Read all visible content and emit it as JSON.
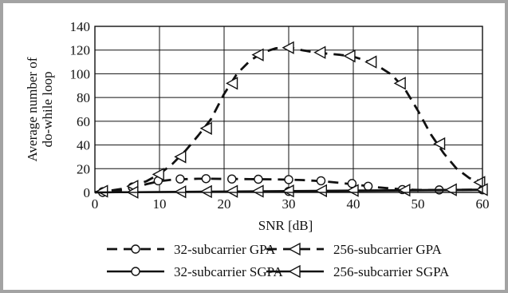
{
  "chart_data": {
    "type": "line",
    "xlabel": "SNR [dB]",
    "ylabel_line1": "Average number of",
    "ylabel_line2": "do-while loop",
    "xlim": [
      0,
      60
    ],
    "ylim": [
      0,
      140
    ],
    "xticks": [
      0,
      10,
      20,
      30,
      40,
      50,
      60
    ],
    "yticks": [
      0,
      20,
      40,
      60,
      80,
      100,
      120,
      140
    ],
    "grid": true,
    "legend_position": "bottom",
    "series": [
      {
        "name": "32-subcarrier GPA",
        "style": "dashed",
        "marker": "circle",
        "curve": [
          [
            0,
            0.2
          ],
          [
            2,
            0.6
          ],
          [
            4,
            1.8
          ],
          [
            6,
            4
          ],
          [
            8,
            7
          ],
          [
            10,
            9.5
          ],
          [
            12,
            10.7
          ],
          [
            14,
            11.2
          ],
          [
            16,
            11.5
          ],
          [
            18,
            11.5
          ],
          [
            20,
            11.4
          ],
          [
            22,
            11.3
          ],
          [
            24,
            11.2
          ],
          [
            26,
            11.1
          ],
          [
            28,
            11
          ],
          [
            30,
            10.8
          ],
          [
            32,
            10.4
          ],
          [
            34,
            9.8
          ],
          [
            36,
            9
          ],
          [
            38,
            8
          ],
          [
            40,
            6.8
          ],
          [
            42,
            5.5
          ],
          [
            44,
            4.2
          ],
          [
            46,
            3.2
          ],
          [
            48,
            2.5
          ],
          [
            50,
            2.1
          ],
          [
            52,
            2
          ],
          [
            54,
            2
          ],
          [
            56,
            2.1
          ],
          [
            58,
            2.2
          ],
          [
            60,
            2.2
          ]
        ],
        "markers": [
          [
            1.2,
            0.6
          ],
          [
            5.8,
            4.6
          ],
          [
            9.8,
            9.8
          ],
          [
            13.2,
            11.3
          ],
          [
            17.2,
            11.6
          ],
          [
            21.2,
            11.3
          ],
          [
            25.3,
            11.1
          ],
          [
            30,
            10.8
          ],
          [
            35,
            9.8
          ],
          [
            39.8,
            7.5
          ],
          [
            42.3,
            5.2
          ],
          [
            47.6,
            2.4
          ],
          [
            53.3,
            2.1
          ],
          [
            60,
            2.2
          ]
        ]
      },
      {
        "name": "32-subcarrier SGPA",
        "style": "solid",
        "marker": "circle",
        "curve": [
          [
            0,
            0
          ],
          [
            10,
            0.3
          ],
          [
            20,
            0.6
          ],
          [
            30,
            0.9
          ],
          [
            40,
            1.2
          ],
          [
            50,
            1.6
          ],
          [
            60,
            2
          ]
        ],
        "markers": [
          [
            1.2,
            0
          ],
          [
            30,
            0.9
          ]
        ]
      },
      {
        "name": "256-subcarrier GPA",
        "style": "dashed",
        "marker": "triangle-left",
        "curve": [
          [
            0,
            0.3
          ],
          [
            2,
            1.2
          ],
          [
            4,
            2.8
          ],
          [
            6,
            5.5
          ],
          [
            8,
            9.5
          ],
          [
            10,
            15.5
          ],
          [
            12,
            24
          ],
          [
            14,
            35
          ],
          [
            16,
            48
          ],
          [
            18,
            62
          ],
          [
            20,
            83
          ],
          [
            22,
            100
          ],
          [
            24,
            111
          ],
          [
            26,
            118
          ],
          [
            28,
            121.5
          ],
          [
            30,
            122.5
          ],
          [
            32,
            120
          ],
          [
            34,
            118
          ],
          [
            36,
            117
          ],
          [
            38,
            116
          ],
          [
            40,
            114.5
          ],
          [
            42,
            111
          ],
          [
            44,
            106
          ],
          [
            46,
            99
          ],
          [
            48,
            87
          ],
          [
            50,
            69
          ],
          [
            52,
            49
          ],
          [
            54,
            33
          ],
          [
            56,
            20
          ],
          [
            58,
            12
          ],
          [
            60,
            9
          ]
        ],
        "markers": [
          [
            1.2,
            1
          ],
          [
            5.9,
            5.2
          ],
          [
            9.9,
            15.2
          ],
          [
            13.3,
            30
          ],
          [
            17.3,
            54
          ],
          [
            21.3,
            92
          ],
          [
            25.3,
            116
          ],
          [
            30,
            122
          ],
          [
            34.9,
            118
          ],
          [
            39.5,
            115
          ],
          [
            42.8,
            110
          ],
          [
            47.3,
            92
          ],
          [
            53.4,
            41
          ],
          [
            59.6,
            8.5
          ]
        ]
      },
      {
        "name": "256-subcarrier SGPA",
        "style": "solid",
        "marker": "triangle-left",
        "curve": [
          [
            0,
            0
          ],
          [
            10,
            0.4
          ],
          [
            20,
            0.8
          ],
          [
            30,
            1.2
          ],
          [
            40,
            1.6
          ],
          [
            50,
            2
          ],
          [
            60,
            2.4
          ]
        ],
        "markers": [
          [
            5.9,
            0.2
          ],
          [
            13.3,
            0.5
          ],
          [
            17.3,
            0.7
          ],
          [
            21.3,
            0.9
          ],
          [
            25.3,
            1
          ],
          [
            30,
            1.2
          ],
          [
            35.1,
            1.4
          ],
          [
            40,
            1.6
          ],
          [
            48,
            1.9
          ],
          [
            55.2,
            2.2
          ],
          [
            60,
            2.4
          ]
        ]
      }
    ]
  }
}
